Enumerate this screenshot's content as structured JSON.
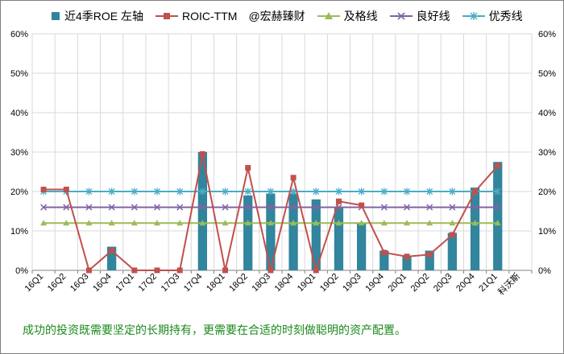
{
  "colors": {
    "bar": "#31859c",
    "roic": "#c0504d",
    "pass": "#9bbb59",
    "good": "#8064a2",
    "excellent": "#4bacc6",
    "grid": "#d9d9d9",
    "footer_text": "#1a8a1a"
  },
  "legend": {
    "bar_label": "近4季ROE 左轴",
    "roic_label": "ROIC-TTM",
    "watermark": "@宏赫臻财",
    "pass_label": "及格线",
    "good_label": "良好线",
    "excellent_label": "优秀线"
  },
  "footer": "成功的投资既需要坚定的长期持有，更需要在合适的时刻做聪明的资产配置。",
  "chart_data": {
    "type": "bar",
    "categories": [
      "16Q1",
      "16Q2",
      "16Q3",
      "16Q4",
      "17Q1",
      "17Q2",
      "17Q3",
      "17Q4",
      "18Q1",
      "18Q2",
      "18Q3",
      "18Q4",
      "19Q1",
      "19Q2",
      "19Q3",
      "19Q4",
      "20Q1",
      "20Q2",
      "20Q3",
      "20Q4",
      "21Q1",
      "科沃斯"
    ],
    "ylim": [
      0,
      60
    ],
    "yticks": [
      "0%",
      "10%",
      "20%",
      "30%",
      "40%",
      "50%",
      "60%"
    ],
    "y2ticks": [
      "0%",
      "10%",
      "20%",
      "30%",
      "40%",
      "50%",
      "60%"
    ],
    "series": [
      {
        "name": "近4季ROE 左轴",
        "kind": "bar",
        "values": [
          null,
          null,
          null,
          6,
          null,
          null,
          null,
          30,
          null,
          19,
          19.5,
          19.5,
          18,
          16,
          12,
          5,
          3.5,
          5,
          9.5,
          21,
          27.5,
          null
        ]
      },
      {
        "name": "ROIC-TTM",
        "kind": "line",
        "values": [
          20.5,
          20.5,
          0,
          5,
          0,
          0,
          0,
          29.5,
          0,
          26,
          0,
          23.5,
          0,
          17.5,
          16.5,
          4.5,
          3.5,
          4,
          9,
          20,
          26.5,
          null
        ]
      },
      {
        "name": "及格线",
        "kind": "line",
        "values": [
          12,
          12,
          12,
          12,
          12,
          12,
          12,
          12,
          12,
          12,
          12,
          12,
          12,
          12,
          12,
          12,
          12,
          12,
          12,
          12,
          12,
          null
        ]
      },
      {
        "name": "良好线",
        "kind": "line",
        "values": [
          16,
          16,
          16,
          16,
          16,
          16,
          16,
          16,
          16,
          16,
          16,
          16,
          16,
          16,
          16,
          16,
          16,
          16,
          16,
          16,
          16,
          null
        ]
      },
      {
        "name": "优秀线",
        "kind": "line",
        "values": [
          20,
          20,
          20,
          20,
          20,
          20,
          20,
          20,
          20,
          20,
          20,
          20,
          20,
          20,
          20,
          20,
          20,
          20,
          20,
          20,
          20,
          null
        ]
      }
    ]
  }
}
